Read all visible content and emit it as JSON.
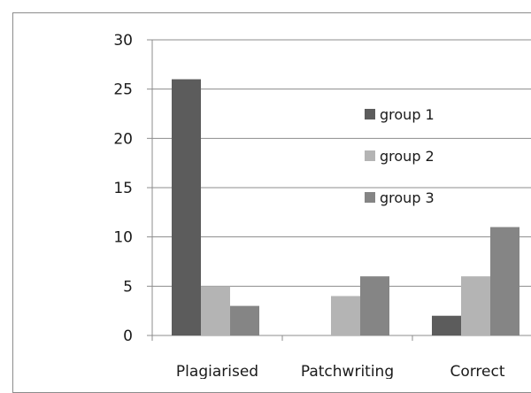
{
  "chart_data": {
    "type": "bar",
    "categories": [
      "Plagiarised",
      "Patchwriting",
      "Correct"
    ],
    "series": [
      {
        "name": "group 1",
        "values": [
          26,
          0,
          2
        ],
        "color": "#5c5c5c"
      },
      {
        "name": "group 2",
        "values": [
          5,
          4,
          6
        ],
        "color": "#b4b4b4"
      },
      {
        "name": "group 3",
        "values": [
          3,
          6,
          11
        ],
        "color": "#858585"
      }
    ],
    "yticks": [
      0,
      5,
      10,
      15,
      20,
      25,
      30
    ],
    "ylim": [
      0,
      30
    ],
    "title": "",
    "xlabel": "",
    "ylabel": "",
    "grid": true,
    "legend": "inside-top-center"
  }
}
